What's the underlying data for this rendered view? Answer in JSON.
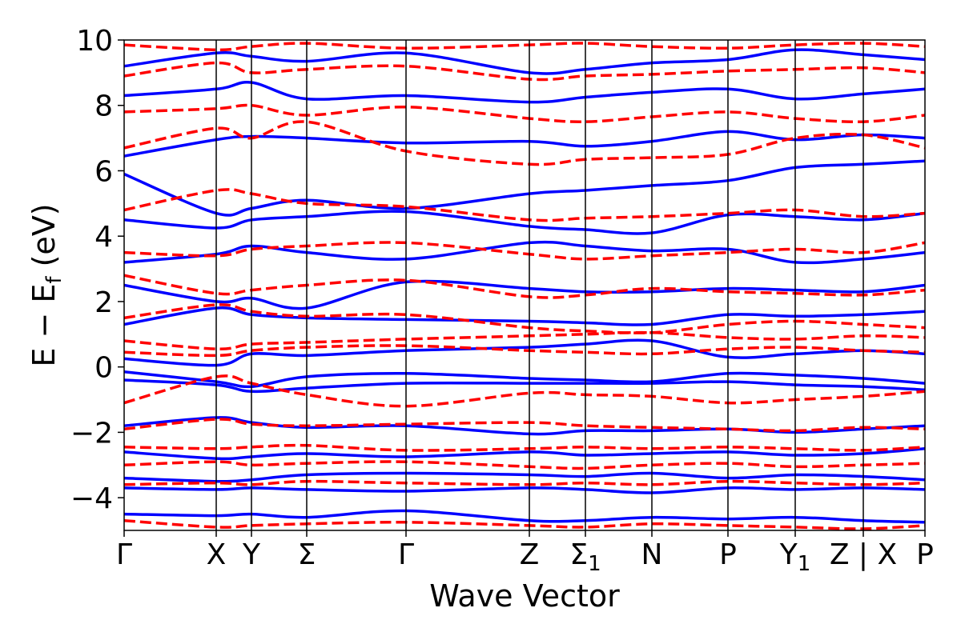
{
  "chart_data": {
    "type": "line",
    "xlabel": "Wave Vector",
    "ylabel": "E − E",
    "ylabel_subscript": "f",
    "ylabel_unit": " (eV)",
    "ylim": [
      -5,
      10
    ],
    "yticks": [
      {
        "value": 10,
        "label": "10"
      },
      {
        "value": 8,
        "label": "8"
      },
      {
        "value": 6,
        "label": "6"
      },
      {
        "value": 4,
        "label": "4"
      },
      {
        "value": 2,
        "label": "2"
      },
      {
        "value": 0,
        "label": "0"
      },
      {
        "value": -2,
        "label": "−2"
      },
      {
        "value": -4,
        "label": "−4"
      }
    ],
    "kpoints": [
      {
        "label": "Γ",
        "sub": "",
        "pos": 0.0
      },
      {
        "label": "X",
        "sub": "",
        "pos": 0.115
      },
      {
        "label": "Y",
        "sub": "",
        "pos": 0.159
      },
      {
        "label": "Σ",
        "sub": "",
        "pos": 0.228
      },
      {
        "label": "Γ",
        "sub": "",
        "pos": 0.352
      },
      {
        "label": "Z",
        "sub": "",
        "pos": 0.506
      },
      {
        "label": "Σ",
        "sub": "1",
        "pos": 0.576
      },
      {
        "label": "N",
        "sub": "",
        "pos": 0.659
      },
      {
        "label": "P",
        "sub": "",
        "pos": 0.754
      },
      {
        "label": "Y",
        "sub": "1",
        "pos": 0.838
      },
      {
        "label": "Z | X",
        "sub": "",
        "pos": 0.923
      },
      {
        "label": "P",
        "sub": "",
        "pos": 1.0
      }
    ],
    "grid": false,
    "series": [
      {
        "color": "#0000ff",
        "style": "solid",
        "bands": [
          [
            6.45,
            6.95,
            7.05,
            7.0,
            6.85,
            6.9,
            6.75,
            6.9,
            7.2,
            6.95,
            7.1,
            7.0
          ],
          [
            5.9,
            4.7,
            4.85,
            5.1,
            4.85,
            5.3,
            5.4,
            5.55,
            5.7,
            6.1,
            6.2,
            6.3
          ],
          [
            4.5,
            4.25,
            4.5,
            4.6,
            4.75,
            4.3,
            4.2,
            4.1,
            4.65,
            4.6,
            4.5,
            4.7
          ],
          [
            3.2,
            3.45,
            3.7,
            3.5,
            3.3,
            3.8,
            3.7,
            3.55,
            3.6,
            3.2,
            3.3,
            3.5
          ],
          [
            2.5,
            2.0,
            2.1,
            1.8,
            2.6,
            2.4,
            2.3,
            2.3,
            2.4,
            2.35,
            2.3,
            2.5
          ],
          [
            1.3,
            1.8,
            1.6,
            1.5,
            1.45,
            1.4,
            1.35,
            1.3,
            1.6,
            1.55,
            1.6,
            1.7
          ],
          [
            0.25,
            0.05,
            0.4,
            0.35,
            0.5,
            0.6,
            0.7,
            0.8,
            0.3,
            0.4,
            0.5,
            0.4
          ],
          [
            -0.15,
            -0.45,
            -0.6,
            -0.3,
            -0.2,
            -0.35,
            -0.4,
            -0.45,
            -0.2,
            -0.25,
            -0.35,
            -0.5
          ],
          [
            -0.4,
            -0.55,
            -0.75,
            -0.65,
            -0.5,
            -0.5,
            -0.5,
            -0.5,
            -0.45,
            -0.55,
            -0.6,
            -0.7
          ],
          [
            -1.8,
            -1.55,
            -1.7,
            -1.85,
            -1.8,
            -2.05,
            -1.95,
            -1.95,
            -1.9,
            -2.0,
            -1.9,
            -1.8
          ],
          [
            -2.6,
            -2.8,
            -2.75,
            -2.65,
            -2.75,
            -2.6,
            -2.7,
            -2.65,
            -2.6,
            -2.7,
            -2.65,
            -2.5
          ],
          [
            -3.4,
            -3.5,
            -3.45,
            -3.3,
            -3.25,
            -3.3,
            -3.35,
            -3.25,
            -3.4,
            -3.3,
            -3.35,
            -3.45
          ],
          [
            -3.7,
            -3.75,
            -3.7,
            -3.75,
            -3.8,
            -3.7,
            -3.75,
            -3.85,
            -3.7,
            -3.75,
            -3.7,
            -3.75
          ],
          [
            -4.5,
            -4.55,
            -4.5,
            -4.6,
            -4.4,
            -4.7,
            -4.7,
            -4.6,
            -4.65,
            -4.6,
            -4.7,
            -4.75
          ],
          [
            8.3,
            8.5,
            8.7,
            8.2,
            8.3,
            8.1,
            8.25,
            8.4,
            8.5,
            8.2,
            8.35,
            8.5
          ],
          [
            9.2,
            9.6,
            9.5,
            9.35,
            9.6,
            9.0,
            9.1,
            9.3,
            9.4,
            9.7,
            9.55,
            9.4
          ]
        ]
      },
      {
        "color": "#ff0000",
        "style": "dashed",
        "bands": [
          [
            6.7,
            7.3,
            7.0,
            7.5,
            6.6,
            6.2,
            6.35,
            6.4,
            6.5,
            7.0,
            7.1,
            6.7
          ],
          [
            4.8,
            5.4,
            5.3,
            5.0,
            4.9,
            4.5,
            4.55,
            4.6,
            4.7,
            4.8,
            4.6,
            4.7
          ],
          [
            3.5,
            3.4,
            3.6,
            3.7,
            3.8,
            3.45,
            3.3,
            3.4,
            3.5,
            3.6,
            3.5,
            3.8
          ],
          [
            2.8,
            2.25,
            2.35,
            2.5,
            2.65,
            2.15,
            2.2,
            2.4,
            2.3,
            2.25,
            2.2,
            2.35
          ],
          [
            1.5,
            1.9,
            1.7,
            1.55,
            1.6,
            1.2,
            1.1,
            1.05,
            1.3,
            1.4,
            1.3,
            1.2
          ],
          [
            0.8,
            0.55,
            0.7,
            0.75,
            0.85,
            0.95,
            1.0,
            1.05,
            0.9,
            0.85,
            0.95,
            0.9
          ],
          [
            0.45,
            0.35,
            0.5,
            0.6,
            0.65,
            0.5,
            0.45,
            0.4,
            0.55,
            0.6,
            0.5,
            0.45
          ],
          [
            -1.1,
            -0.3,
            -0.5,
            -0.85,
            -1.2,
            -0.8,
            -0.85,
            -0.9,
            -1.1,
            -1.0,
            -0.9,
            -0.75
          ],
          [
            -1.9,
            -1.6,
            -1.75,
            -1.8,
            -1.75,
            -1.7,
            -1.8,
            -1.85,
            -1.9,
            -1.95,
            -1.85,
            -1.9
          ],
          [
            -2.45,
            -2.5,
            -2.45,
            -2.4,
            -2.55,
            -2.5,
            -2.45,
            -2.5,
            -2.45,
            -2.5,
            -2.55,
            -2.45
          ],
          [
            -3.0,
            -2.9,
            -3.0,
            -2.95,
            -2.9,
            -3.05,
            -3.1,
            -3.0,
            -2.95,
            -3.05,
            -3.0,
            -2.95
          ],
          [
            -3.6,
            -3.55,
            -3.6,
            -3.5,
            -3.55,
            -3.6,
            -3.55,
            -3.6,
            -3.5,
            -3.55,
            -3.6,
            -3.55
          ],
          [
            -4.7,
            -4.9,
            -4.85,
            -4.8,
            -4.75,
            -4.85,
            -4.9,
            -4.8,
            -4.85,
            -4.9,
            -4.95,
            -4.85
          ],
          [
            7.8,
            7.9,
            8.0,
            7.7,
            7.95,
            7.6,
            7.5,
            7.65,
            7.8,
            7.6,
            7.5,
            7.7
          ],
          [
            8.9,
            9.3,
            9.0,
            9.1,
            9.2,
            8.8,
            8.9,
            8.95,
            9.05,
            9.1,
            9.15,
            9.0
          ],
          [
            9.85,
            9.7,
            9.8,
            9.9,
            9.75,
            9.85,
            9.9,
            9.8,
            9.75,
            9.85,
            9.9,
            9.8
          ]
        ]
      }
    ]
  }
}
